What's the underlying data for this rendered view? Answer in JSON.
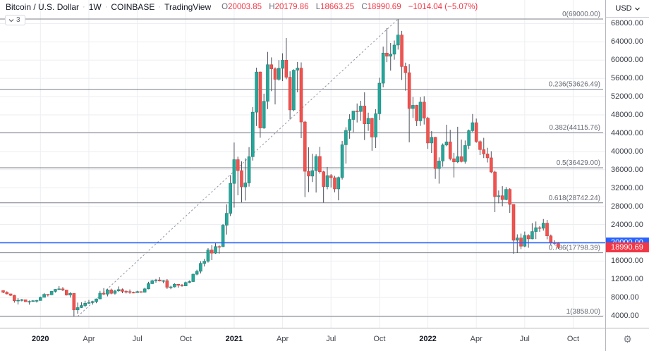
{
  "header": {
    "symbol_title": "Bitcoin / U.S. Dollar",
    "interval": "1W",
    "exchange": "COINBASE",
    "brand": "TradingView",
    "separator": "·",
    "indicators_count": "3",
    "ohlc": {
      "o_label": "O",
      "o_value": "20003.85",
      "h_label": "H",
      "h_value": "20179.86",
      "l_label": "L",
      "l_value": "18663.25",
      "c_label": "C",
      "c_value": "18990.69",
      "change": "−1014.04 (−5.07%)"
    }
  },
  "price_axis": {
    "currency_label": "USD",
    "level_price_label": "20000.00",
    "last_price_label": "18990.69"
  },
  "icons": {
    "chevron_down": "⌄",
    "gear": "⚙"
  },
  "colors": {
    "up": "#26a69a",
    "down": "#ef5350",
    "wick": "#4c505b",
    "grid": "#eceef2",
    "fib_line": "#7c7f89",
    "fib_text": "#686b75",
    "trendline": "#9094a0",
    "blue_line": "#2962ff",
    "last_price_bg": "#f23645"
  },
  "chart_data": {
    "type": "candlestick",
    "title": "Bitcoin / U.S. Dollar",
    "interval": "1W",
    "exchange": "COINBASE",
    "first_candle_week": "2019-10-28",
    "candle_interval_days": 7,
    "y_axis": {
      "ticks": [
        68000,
        64000,
        60000,
        56000,
        52000,
        48000,
        44000,
        40000,
        36000,
        32000,
        28000,
        24000,
        20000,
        16000,
        12000,
        8000,
        4000
      ],
      "side": "right",
      "format": "0.00"
    },
    "x_axis": {
      "labels": [
        {
          "text": "2020",
          "week_index": 10,
          "year": true
        },
        {
          "text": "Apr",
          "week_index": 23,
          "year": false
        },
        {
          "text": "Jul",
          "week_index": 36,
          "year": false
        },
        {
          "text": "Oct",
          "week_index": 49,
          "year": false
        },
        {
          "text": "2021",
          "week_index": 62,
          "year": true
        },
        {
          "text": "Apr",
          "week_index": 75,
          "year": false
        },
        {
          "text": "Jul",
          "week_index": 88,
          "year": false
        },
        {
          "text": "Oct",
          "week_index": 101,
          "year": false
        },
        {
          "text": "2022",
          "week_index": 114,
          "year": true
        },
        {
          "text": "Apr",
          "week_index": 127,
          "year": false
        },
        {
          "text": "Jul",
          "week_index": 140,
          "year": false
        },
        {
          "text": "Oct",
          "week_index": 153,
          "year": false
        }
      ]
    },
    "fib_retracement": {
      "levels": [
        {
          "ratio": "0",
          "price": 69000.0,
          "label": "0(69000.00)"
        },
        {
          "ratio": "0.236",
          "price": 53626.49,
          "label": "0.236(53626.49)"
        },
        {
          "ratio": "0.382",
          "price": 44115.76,
          "label": "0.382(44115.76)"
        },
        {
          "ratio": "0.5",
          "price": 36429.0,
          "label": "0.5(36429.00)"
        },
        {
          "ratio": "0.618",
          "price": 28742.24,
          "label": "0.618(28742.24)"
        },
        {
          "ratio": "0.786",
          "price": 17798.39,
          "label": "0.786(17798.39)"
        },
        {
          "ratio": "1",
          "price": 3858.0,
          "label": "1(3858.00)"
        }
      ]
    },
    "trendline": {
      "style": "dashed",
      "from": {
        "week_index": 20,
        "price": 3858
      },
      "to": {
        "week_index": 106,
        "price": 69000
      }
    },
    "price_line": {
      "price": 20000.0,
      "color": "#2962ff",
      "axis_label": "20000.00"
    },
    "last_candle": {
      "open": 20003.85,
      "high": 20179.86,
      "low": 18663.25,
      "close": 18990.69,
      "change": -1014.04,
      "change_pct": -5.07
    },
    "colors": {
      "up": "#26a69a",
      "down": "#ef5350"
    },
    "ohlc": [
      [
        9520,
        9590,
        8950,
        9150
      ],
      [
        9150,
        9360,
        8680,
        8800
      ],
      [
        8800,
        8850,
        8350,
        8480
      ],
      [
        8480,
        8600,
        6890,
        7300
      ],
      [
        7300,
        7870,
        6500,
        7400
      ],
      [
        7400,
        7700,
        7150,
        7520
      ],
      [
        7520,
        7530,
        7050,
        7100
      ],
      [
        7100,
        7350,
        6450,
        7150
      ],
      [
        7150,
        7440,
        7050,
        7300
      ],
      [
        7300,
        7500,
        6900,
        7350
      ],
      [
        7350,
        8200,
        7320,
        8050
      ],
      [
        8050,
        9000,
        8000,
        8700
      ],
      [
        8700,
        8740,
        8230,
        8600
      ],
      [
        8600,
        9450,
        8540,
        9350
      ],
      [
        9350,
        9850,
        9100,
        9800
      ],
      [
        9800,
        10500,
        9650,
        9900
      ],
      [
        9900,
        10290,
        9420,
        9650
      ],
      [
        9650,
        9680,
        8450,
        8550
      ],
      [
        8550,
        9190,
        8000,
        8900
      ],
      [
        8900,
        8950,
        3850,
        5300
      ],
      [
        5300,
        6900,
        4450,
        5800
      ],
      [
        5800,
        6980,
        5700,
        6250
      ],
      [
        6250,
        7290,
        5870,
        6740
      ],
      [
        6740,
        7470,
        6610,
        6900
      ],
      [
        6900,
        7300,
        6450,
        7130
      ],
      [
        7130,
        7780,
        6760,
        7700
      ],
      [
        7700,
        9460,
        7640,
        8950
      ],
      [
        8950,
        10070,
        8530,
        8750
      ],
      [
        8750,
        9950,
        8250,
        9680
      ],
      [
        9680,
        9950,
        8720,
        8920
      ],
      [
        8920,
        9700,
        8650,
        9450
      ],
      [
        9450,
        10430,
        9280,
        9750
      ],
      [
        9750,
        9980,
        8950,
        9350
      ],
      [
        9350,
        9590,
        8900,
        9300
      ],
      [
        9300,
        9770,
        8830,
        9130
      ],
      [
        9130,
        9290,
        8940,
        9070
      ],
      [
        9070,
        9480,
        9020,
        9300
      ],
      [
        9300,
        9340,
        9050,
        9160
      ],
      [
        9160,
        10130,
        9100,
        9900
      ],
      [
        9900,
        11450,
        9820,
        11050
      ],
      [
        11050,
        11910,
        10930,
        11680
      ],
      [
        11680,
        12090,
        11250,
        11850
      ],
      [
        11850,
        12470,
        11530,
        11650
      ],
      [
        11650,
        11830,
        11130,
        11700
      ],
      [
        11700,
        12060,
        9900,
        10250
      ],
      [
        10250,
        10580,
        9830,
        10330
      ],
      [
        10330,
        11100,
        10210,
        10920
      ],
      [
        10920,
        10950,
        10140,
        10690
      ],
      [
        10690,
        10960,
        10380,
        10550
      ],
      [
        10550,
        11490,
        10490,
        11290
      ],
      [
        11290,
        11730,
        11160,
        11500
      ],
      [
        11500,
        13240,
        11400,
        13110
      ],
      [
        13110,
        14100,
        12880,
        13750
      ],
      [
        13750,
        15960,
        13270,
        15480
      ],
      [
        15480,
        16480,
        14800,
        15950
      ],
      [
        15950,
        18820,
        15660,
        18410
      ],
      [
        18410,
        19480,
        16200,
        17730
      ],
      [
        17730,
        19900,
        17570,
        19170
      ],
      [
        19170,
        19420,
        17620,
        19150
      ],
      [
        19150,
        24100,
        19050,
        23850
      ],
      [
        23850,
        28400,
        21800,
        26450
      ],
      [
        26450,
        34800,
        25840,
        33000
      ],
      [
        33000,
        41950,
        27700,
        38200
      ],
      [
        38200,
        38850,
        30400,
        35800
      ],
      [
        35800,
        37850,
        28850,
        32250
      ],
      [
        32250,
        38500,
        29250,
        33100
      ],
      [
        33100,
        40950,
        32300,
        38850
      ],
      [
        38850,
        49700,
        38000,
        48600
      ],
      [
        48600,
        58350,
        45570,
        57400
      ],
      [
        57400,
        57500,
        43000,
        45140
      ],
      [
        45140,
        52650,
        44950,
        50980
      ],
      [
        50980,
        61800,
        49270,
        59000
      ],
      [
        59000,
        60600,
        53200,
        58100
      ],
      [
        58100,
        58400,
        50300,
        55800
      ],
      [
        55800,
        60000,
        55500,
        58200
      ],
      [
        58200,
        61500,
        55400,
        59990
      ],
      [
        60000,
        64850,
        55800,
        56250
      ],
      [
        56250,
        57550,
        47000,
        49100
      ],
      [
        49100,
        58000,
        48800,
        57800
      ],
      [
        57800,
        59600,
        52950,
        58250
      ],
      [
        58250,
        59500,
        42900,
        46450
      ],
      [
        46450,
        46700,
        30000,
        35650
      ],
      [
        35650,
        40900,
        31100,
        34600
      ],
      [
        34600,
        39480,
        33300,
        35800
      ],
      [
        35800,
        39380,
        31000,
        38900
      ],
      [
        38900,
        41000,
        35150,
        35550
      ],
      [
        35550,
        35750,
        28800,
        32300
      ],
      [
        32300,
        36600,
        31700,
        34700
      ],
      [
        34700,
        35050,
        32100,
        34250
      ],
      [
        34250,
        34650,
        31050,
        31800
      ],
      [
        31800,
        34500,
        29300,
        34290
      ],
      [
        34290,
        42300,
        33850,
        41460
      ],
      [
        41460,
        45300,
        37330,
        44600
      ],
      [
        44600,
        48150,
        42780,
        47000
      ],
      [
        47000,
        48050,
        44220,
        48850
      ],
      [
        48850,
        50500,
        46350,
        48750
      ],
      [
        48750,
        51100,
        46700,
        49950
      ],
      [
        49950,
        52950,
        42500,
        46050
      ],
      [
        46050,
        48500,
        44500,
        47250
      ],
      [
        47250,
        47350,
        40150,
        43150
      ],
      [
        43150,
        49250,
        40750,
        48250
      ],
      [
        48250,
        56150,
        46900,
        54950
      ],
      [
        54950,
        62950,
        54050,
        61550
      ],
      [
        61550,
        67000,
        59550,
        60850
      ],
      [
        60850,
        63750,
        57700,
        61300
      ],
      [
        61300,
        64300,
        60100,
        63300
      ],
      [
        63300,
        69000,
        62300,
        65500
      ],
      [
        65500,
        66400,
        55650,
        58600
      ],
      [
        58600,
        59450,
        53300,
        57250
      ],
      [
        57250,
        59100,
        42000,
        49400
      ],
      [
        49400,
        51950,
        47320,
        50100
      ],
      [
        50100,
        50200,
        45550,
        46700
      ],
      [
        46700,
        51900,
        45600,
        50800
      ],
      [
        50800,
        52100,
        45900,
        47300
      ],
      [
        47300,
        47580,
        40550,
        41850
      ],
      [
        41850,
        44450,
        39650,
        43100
      ],
      [
        43100,
        43200,
        34000,
        36250
      ],
      [
        36250,
        38700,
        32950,
        37900
      ],
      [
        37900,
        41750,
        36650,
        41400
      ],
      [
        41400,
        45850,
        41150,
        42100
      ],
      [
        42100,
        44750,
        38050,
        38400
      ],
      [
        38400,
        39700,
        34300,
        37700
      ],
      [
        37700,
        45400,
        37450,
        38850
      ],
      [
        38850,
        42600,
        37600,
        37800
      ],
      [
        37800,
        42400,
        37330,
        41300
      ],
      [
        41300,
        44800,
        40500,
        44550
      ],
      [
        44550,
        48200,
        44250,
        46300
      ],
      [
        46300,
        47200,
        41900,
        42150
      ],
      [
        42150,
        42420,
        39200,
        40400
      ],
      [
        40400,
        42980,
        38550,
        39450
      ],
      [
        39450,
        40800,
        37580,
        38600
      ],
      [
        38600,
        40050,
        35250,
        35500
      ],
      [
        35500,
        35800,
        26700,
        30100
      ],
      [
        30100,
        31450,
        28650,
        30300
      ],
      [
        30300,
        32400,
        28000,
        29450
      ],
      [
        29450,
        32200,
        29300,
        31700
      ],
      [
        31700,
        31950,
        26550,
        28400
      ],
      [
        28400,
        28450,
        17600,
        20550
      ],
      [
        20550,
        21850,
        17750,
        21050
      ],
      [
        21050,
        22000,
        18600,
        19250
      ],
      [
        19250,
        22450,
        19050,
        21600
      ],
      [
        21600,
        21850,
        18900,
        20850
      ],
      [
        20850,
        24300,
        20750,
        22450
      ],
      [
        22450,
        24650,
        20800,
        23300
      ],
      [
        23300,
        23650,
        22400,
        23175
      ],
      [
        23175,
        25200,
        22650,
        24300
      ],
      [
        24300,
        25000,
        20750,
        21500
      ],
      [
        21500,
        21800,
        19500,
        20000
      ],
      [
        20000,
        20550,
        19550,
        19830
      ],
      [
        20003.85,
        20179.86,
        18663.25,
        18990.69
      ]
    ]
  }
}
